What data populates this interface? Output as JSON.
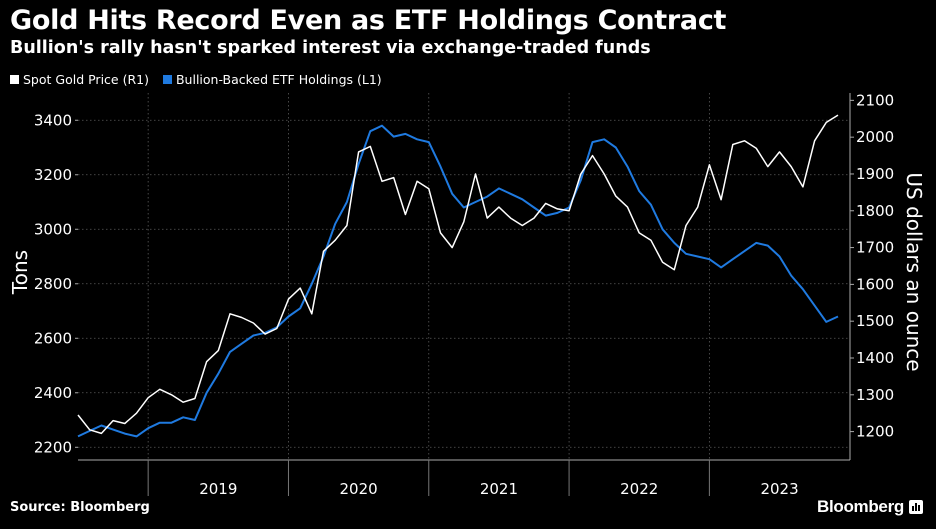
{
  "header": {
    "title": "Gold Hits Record Even as ETF Holdings Contract",
    "subtitle": "Bullion's rally hasn't sparked interest via exchange-traded funds"
  },
  "footer": {
    "source": "Source: Bloomberg",
    "brand": "Bloomberg"
  },
  "colors": {
    "background": "#000000",
    "gold_series": "#ffffff",
    "etf_series": "#1f7ae0",
    "grid": "#666666"
  },
  "chart_data": {
    "type": "line",
    "legend_position": "top-left",
    "grid": true,
    "x_labels": [
      "2019",
      "2020",
      "2021",
      "2022",
      "2023"
    ],
    "x_range": [
      "2018-07",
      "2023-12"
    ],
    "left_axis": {
      "label": "Tons",
      "ticks": [
        "2200",
        "2400",
        "2600",
        "2800",
        "3000",
        "3200",
        "3400"
      ],
      "ylim": [
        2190,
        3500
      ]
    },
    "right_axis": {
      "label": "US dollars an ounce",
      "ticks": [
        "1200",
        "1300",
        "1400",
        "1500",
        "1600",
        "1700",
        "1800",
        "1900",
        "2000",
        "2100"
      ],
      "ylim": [
        1150,
        2120
      ]
    },
    "series": [
      {
        "name": "Spot Gold Price (R1)",
        "axis": "right",
        "x": [
          "2018-07",
          "2018-08",
          "2018-09",
          "2018-10",
          "2018-11",
          "2018-12",
          "2019-01",
          "2019-02",
          "2019-03",
          "2019-04",
          "2019-05",
          "2019-06",
          "2019-07",
          "2019-08",
          "2019-09",
          "2019-10",
          "2019-11",
          "2019-12",
          "2020-01",
          "2020-02",
          "2020-03",
          "2020-04",
          "2020-05",
          "2020-06",
          "2020-07",
          "2020-08",
          "2020-09",
          "2020-10",
          "2020-11",
          "2020-12",
          "2021-01",
          "2021-02",
          "2021-03",
          "2021-04",
          "2021-05",
          "2021-06",
          "2021-07",
          "2021-08",
          "2021-09",
          "2021-10",
          "2021-11",
          "2021-12",
          "2022-01",
          "2022-02",
          "2022-03",
          "2022-04",
          "2022-05",
          "2022-06",
          "2022-07",
          "2022-08",
          "2022-09",
          "2022-10",
          "2022-11",
          "2022-12",
          "2023-01",
          "2023-02",
          "2023-03",
          "2023-04",
          "2023-05",
          "2023-06",
          "2023-07",
          "2023-08",
          "2023-09",
          "2023-10",
          "2023-11",
          "2023-12"
        ],
        "values": [
          1245,
          1205,
          1195,
          1230,
          1222,
          1250,
          1292,
          1315,
          1300,
          1280,
          1290,
          1390,
          1420,
          1520,
          1510,
          1495,
          1465,
          1480,
          1560,
          1590,
          1520,
          1690,
          1720,
          1760,
          1960,
          1975,
          1880,
          1890,
          1790,
          1880,
          1860,
          1740,
          1700,
          1770,
          1900,
          1780,
          1810,
          1780,
          1760,
          1780,
          1820,
          1805,
          1800,
          1900,
          1950,
          1900,
          1840,
          1810,
          1740,
          1720,
          1660,
          1640,
          1760,
          1810,
          1925,
          1830,
          1980,
          1990,
          1970,
          1920,
          1960,
          1920,
          1865,
          1990,
          2040,
          2060
        ]
      },
      {
        "name": "Bullion-Backed ETF Holdings (L1)",
        "axis": "left",
        "x": [
          "2018-07",
          "2018-08",
          "2018-09",
          "2018-10",
          "2018-11",
          "2018-12",
          "2019-01",
          "2019-02",
          "2019-03",
          "2019-04",
          "2019-05",
          "2019-06",
          "2019-07",
          "2019-08",
          "2019-09",
          "2019-10",
          "2019-11",
          "2019-12",
          "2020-01",
          "2020-02",
          "2020-03",
          "2020-04",
          "2020-05",
          "2020-06",
          "2020-07",
          "2020-08",
          "2020-09",
          "2020-10",
          "2020-11",
          "2020-12",
          "2021-01",
          "2021-02",
          "2021-03",
          "2021-04",
          "2021-05",
          "2021-06",
          "2021-07",
          "2021-08",
          "2021-09",
          "2021-10",
          "2021-11",
          "2021-12",
          "2022-01",
          "2022-02",
          "2022-03",
          "2022-04",
          "2022-05",
          "2022-06",
          "2022-07",
          "2022-08",
          "2022-09",
          "2022-10",
          "2022-11",
          "2022-12",
          "2023-01",
          "2023-02",
          "2023-03",
          "2023-04",
          "2023-05",
          "2023-06",
          "2023-07",
          "2023-08",
          "2023-09",
          "2023-10",
          "2023-11",
          "2023-12"
        ],
        "values": [
          2240,
          2260,
          2280,
          2265,
          2250,
          2240,
          2270,
          2290,
          2290,
          2310,
          2300,
          2400,
          2470,
          2550,
          2580,
          2610,
          2620,
          2640,
          2680,
          2710,
          2800,
          2900,
          3020,
          3100,
          3240,
          3360,
          3380,
          3340,
          3350,
          3330,
          3320,
          3230,
          3130,
          3080,
          3100,
          3120,
          3150,
          3130,
          3110,
          3080,
          3050,
          3060,
          3080,
          3180,
          3320,
          3330,
          3300,
          3230,
          3140,
          3090,
          3000,
          2950,
          2910,
          2900,
          2890,
          2860,
          2890,
          2920,
          2950,
          2940,
          2900,
          2830,
          2780,
          2720,
          2660,
          2680
        ]
      }
    ]
  }
}
